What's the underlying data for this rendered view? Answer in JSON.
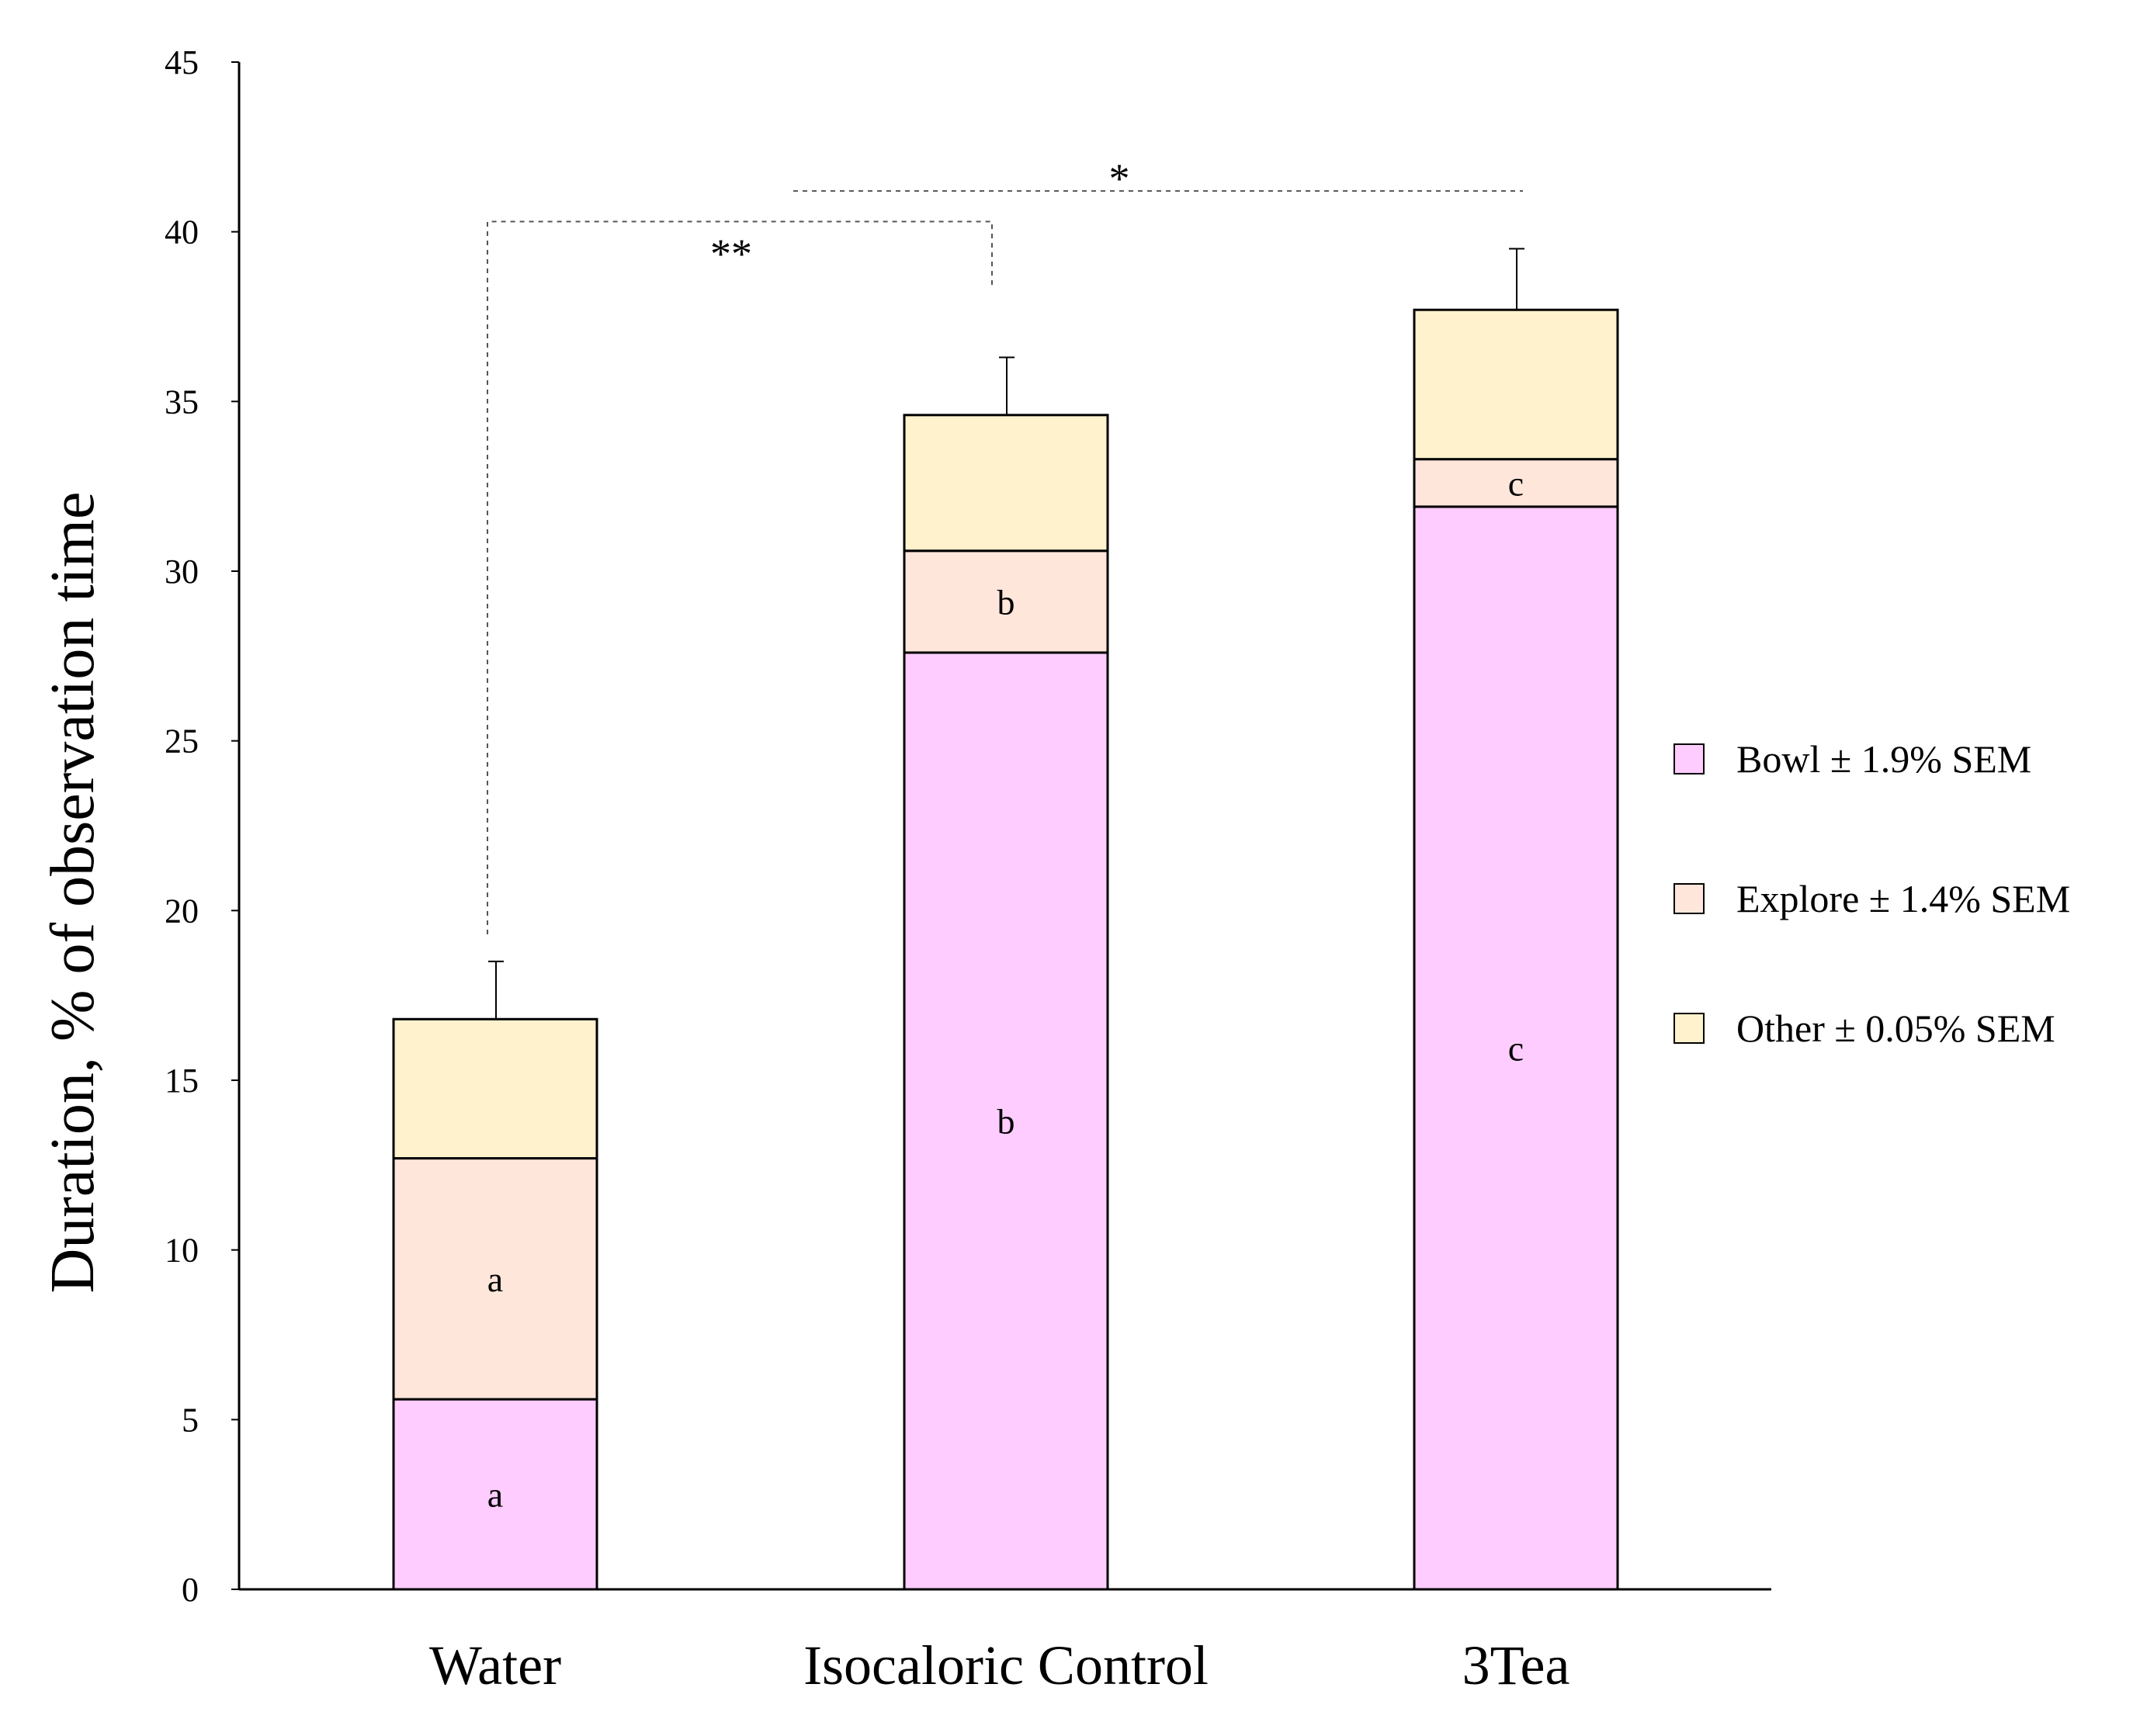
{
  "chart_data": {
    "type": "bar",
    "stacked": true,
    "categories": [
      "Water",
      "Isocaloric Control",
      "3Tea"
    ],
    "series": [
      {
        "name": "Bowl ± 1.9% SEM",
        "values": [
          5.6,
          27.6,
          31.9
        ],
        "color": "#ffccff",
        "segment_labels": [
          "a",
          "b",
          "c"
        ]
      },
      {
        "name": "Explore ± 1.4% SEM",
        "values": [
          7.1,
          3.0,
          1.4
        ],
        "color": "#ffe6da",
        "segment_labels": [
          "a",
          "b",
          "c"
        ]
      },
      {
        "name": "Other ± 0.05% SEM",
        "values": [
          4.1,
          4.0,
          4.4
        ],
        "color": "#fff2cc",
        "segment_labels": [
          "",
          "",
          ""
        ]
      }
    ],
    "error_bars": [
      1.7,
      1.7,
      1.8
    ],
    "ylabel": "Duration, % of observation time",
    "xlabel": "",
    "ylim": [
      0,
      45
    ],
    "yticks": [
      0,
      5,
      10,
      15,
      20,
      25,
      30,
      35,
      40,
      45
    ],
    "legend_position": "right",
    "grid": false,
    "significance": [
      {
        "from": "Water",
        "to": "Isocaloric Control",
        "label": "**"
      },
      {
        "from": "Isocaloric Control",
        "to": "3Tea",
        "label": "*"
      }
    ]
  }
}
